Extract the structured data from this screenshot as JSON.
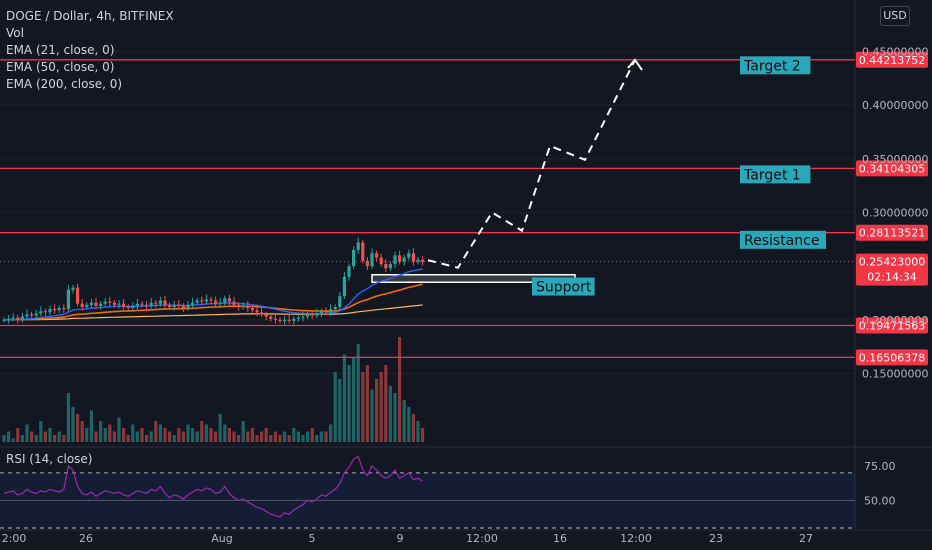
{
  "header": {
    "symbol_line": "DOGE / Dollar, 4h, BITFINEX",
    "indicators": [
      "Vol",
      "EMA (21, close, 0)",
      "EMA (50, close, 0)",
      "EMA (200, close, 0)"
    ],
    "currency": "USD"
  },
  "rsi_panel": {
    "label": "RSI (14, close)",
    "ticks": [
      "75.00",
      "50.00"
    ]
  },
  "colors": {
    "background": "#131722",
    "level_line": "#f23645",
    "level_badge": "#f23645",
    "annotation_bg": "#2aa8b9",
    "ema21": "#2962ff",
    "ema50": "#ef6c00",
    "ema200": "#ffb74d",
    "candle_up": "#26a69a",
    "candle_down": "#ef5350",
    "rsi_line": "#9c27b0",
    "projection": "#ffffff"
  },
  "chart_data": {
    "type": "line",
    "title": "DOGE / Dollar, 4h, BITFINEX",
    "y_axis_ticks": [
      "0.45000000",
      "0.40000000",
      "0.35000000",
      "0.30000000",
      "0.20000000",
      "0.15000000"
    ],
    "ylim": [
      0.13,
      0.455
    ],
    "x_axis_ticks": [
      "2:00",
      "26",
      "Aug",
      "5",
      "9",
      "12:00",
      "16",
      "12:00",
      "23",
      "27"
    ],
    "horizontal_levels": [
      {
        "name": "level-0.44213752",
        "value": 0.44213752,
        "label": "0.44213752"
      },
      {
        "name": "level-0.34104305",
        "value": 0.34104305,
        "label": "0.34104305"
      },
      {
        "name": "level-0.28113521",
        "value": 0.28113521,
        "label": "0.28113521"
      },
      {
        "name": "level-0.19471563",
        "value": 0.19471563,
        "label": "0.19471563"
      },
      {
        "name": "level-0.16506378",
        "value": 0.16506378,
        "label": "0.16506378"
      }
    ],
    "last_price": {
      "value": 0.25423,
      "label": "0.25423000",
      "countdown": "02:14:34"
    },
    "annotations": [
      {
        "text": "Target 2",
        "value": 0.437
      },
      {
        "text": "Target 1",
        "value": 0.3355
      },
      {
        "text": "Resistance",
        "value": 0.2745
      },
      {
        "text": "Support",
        "value": 0.231
      }
    ],
    "support_zone": [
      0.235,
      0.242
    ],
    "projection_path": [
      0.2555,
      0.2485,
      0.3,
      0.283,
      0.362,
      0.349,
      0.442
    ],
    "price_series": [
      0.2,
      0.201,
      0.202,
      0.2,
      0.203,
      0.205,
      0.204,
      0.206,
      0.208,
      0.207,
      0.21,
      0.209,
      0.211,
      0.21,
      0.228,
      0.23,
      0.215,
      0.212,
      0.214,
      0.216,
      0.213,
      0.215,
      0.217,
      0.216,
      0.214,
      0.215,
      0.212,
      0.211,
      0.213,
      0.215,
      0.214,
      0.213,
      0.216,
      0.215,
      0.218,
      0.214,
      0.212,
      0.214,
      0.213,
      0.211,
      0.214,
      0.216,
      0.218,
      0.217,
      0.219,
      0.218,
      0.215,
      0.216,
      0.22,
      0.217,
      0.214,
      0.212,
      0.213,
      0.211,
      0.209,
      0.207,
      0.205,
      0.203,
      0.201,
      0.2,
      0.199,
      0.2,
      0.199,
      0.201,
      0.202,
      0.203,
      0.205,
      0.204,
      0.206,
      0.208,
      0.207,
      0.21,
      0.212,
      0.222,
      0.24,
      0.25,
      0.265,
      0.272,
      0.255,
      0.25,
      0.262,
      0.258,
      0.252,
      0.248,
      0.252,
      0.26,
      0.254,
      0.258,
      0.262,
      0.254,
      0.256,
      0.254
    ],
    "volume_series": [
      2,
      3,
      1,
      4,
      2,
      5,
      3,
      2,
      6,
      3,
      4,
      2,
      3,
      2,
      14,
      10,
      8,
      6,
      4,
      9,
      3,
      6,
      4,
      5,
      3,
      7,
      4,
      2,
      5,
      3,
      4,
      2,
      3,
      6,
      5,
      4,
      3,
      2,
      4,
      3,
      5,
      4,
      3,
      6,
      5,
      4,
      3,
      8,
      5,
      4,
      3,
      2,
      6,
      3,
      4,
      2,
      3,
      4,
      2,
      3,
      2,
      3,
      2,
      4,
      3,
      2,
      3,
      4,
      2,
      3,
      3,
      5,
      20,
      18,
      25,
      22,
      24,
      28,
      20,
      22,
      15,
      18,
      20,
      22,
      16,
      14,
      30,
      12,
      10,
      8,
      6,
      4
    ],
    "rsi_series": [
      55,
      56,
      57,
      54,
      55,
      58,
      56,
      55,
      57,
      56,
      58,
      57,
      56,
      58,
      75,
      72,
      60,
      55,
      54,
      56,
      53,
      55,
      57,
      56,
      55,
      56,
      54,
      53,
      55,
      57,
      56,
      55,
      58,
      57,
      60,
      55,
      52,
      54,
      53,
      51,
      54,
      56,
      58,
      57,
      59,
      58,
      55,
      56,
      60,
      55,
      52,
      50,
      51,
      49,
      47,
      45,
      44,
      42,
      40,
      39,
      38,
      41,
      40,
      43,
      45,
      47,
      50,
      49,
      51,
      54,
      53,
      56,
      58,
      62,
      70,
      74,
      80,
      82,
      72,
      68,
      75,
      72,
      68,
      66,
      68,
      72,
      66,
      68,
      70,
      65,
      66,
      64
    ],
    "rsi_ylim": [
      30,
      88
    ]
  }
}
